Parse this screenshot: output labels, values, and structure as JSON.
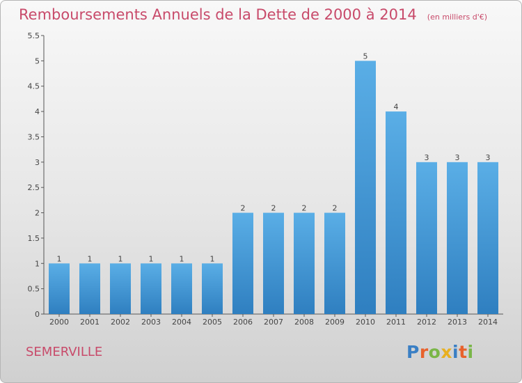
{
  "title": "Remboursements Annuels de la Dette de 2000 à 2014",
  "unit": "(en milliers d'€)",
  "commune": "SEMERVILLE",
  "logo": {
    "letters": [
      "P",
      "r",
      "o",
      "x",
      "i",
      "t",
      "i"
    ],
    "colors": [
      "#3a7fc4",
      "#e8622c",
      "#7ab648",
      "#e8b020",
      "#3a7fc4",
      "#e8622c",
      "#7ab648"
    ]
  },
  "colors": {
    "bar_top": "#5aaee6",
    "bar_bottom": "#2f7fc0",
    "title": "#c84a6a"
  },
  "chart_data": {
    "type": "bar",
    "title": "Remboursements Annuels de la Dette de 2000 à 2014",
    "categories": [
      "2000",
      "2001",
      "2002",
      "2003",
      "2004",
      "2005",
      "2006",
      "2007",
      "2008",
      "2009",
      "2010",
      "2011",
      "2012",
      "2013",
      "2014"
    ],
    "values": [
      1,
      1,
      1,
      1,
      1,
      1,
      2,
      2,
      2,
      2,
      5,
      4,
      3,
      3,
      3
    ],
    "ylim": [
      0,
      5.5
    ],
    "yticks": [
      "0",
      "0.5",
      "1",
      "1.5",
      "2",
      "2.5",
      "3",
      "3.5",
      "4",
      "4.5",
      "5",
      "5.5"
    ],
    "grid": false
  }
}
